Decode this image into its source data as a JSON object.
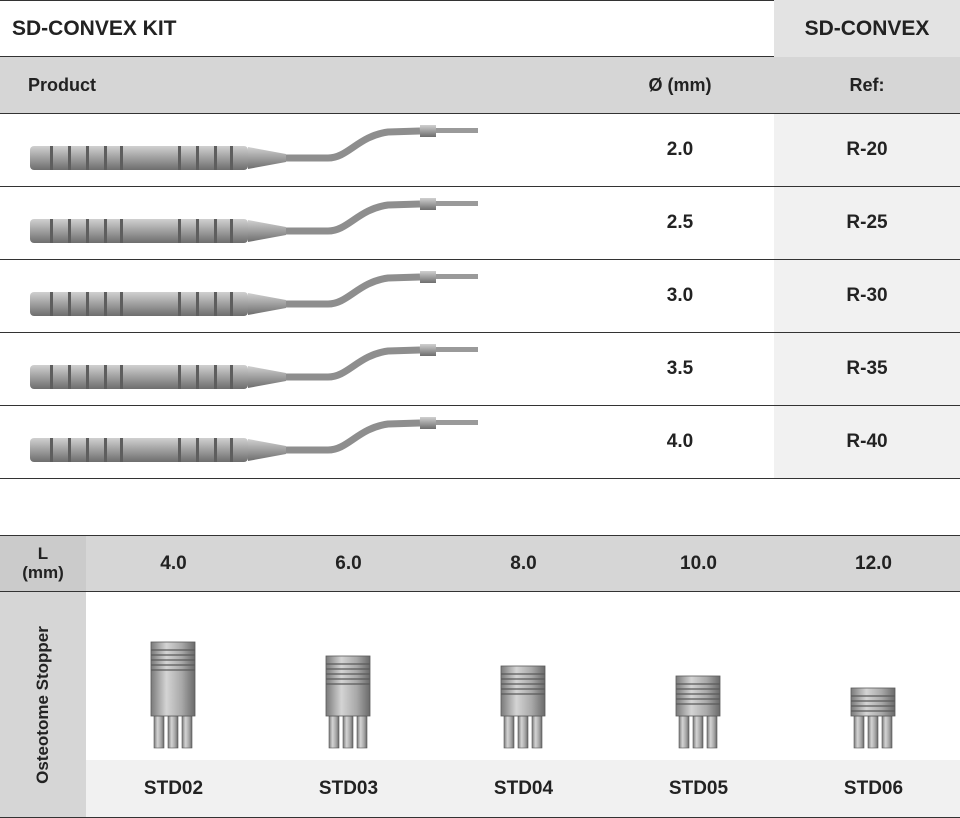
{
  "kit": {
    "title": "SD-CONVEX KIT",
    "code": "SD-CONVEX"
  },
  "columns": {
    "product": "Product",
    "diameter": "Ø (mm)",
    "ref": "Ref:"
  },
  "rows": [
    {
      "diameter": "2.0",
      "ref": "R-20"
    },
    {
      "diameter": "2.5",
      "ref": "R-25"
    },
    {
      "diameter": "3.0",
      "ref": "R-30"
    },
    {
      "diameter": "3.5",
      "ref": "R-35"
    },
    {
      "diameter": "4.0",
      "ref": "R-40"
    }
  ],
  "stoppers": {
    "length_label_line1": "L",
    "length_label_line2": "(mm)",
    "row_label": "Osteotome Stopper",
    "lengths": [
      "4.0",
      "6.0",
      "8.0",
      "10.0",
      "12.0"
    ],
    "codes": [
      "STD02",
      "STD03",
      "STD04",
      "STD05",
      "STD06"
    ]
  },
  "colors": {
    "header_gray": "#d6d6d6",
    "light_gray": "#f1f1f1",
    "metal": "#9a9a9a"
  }
}
